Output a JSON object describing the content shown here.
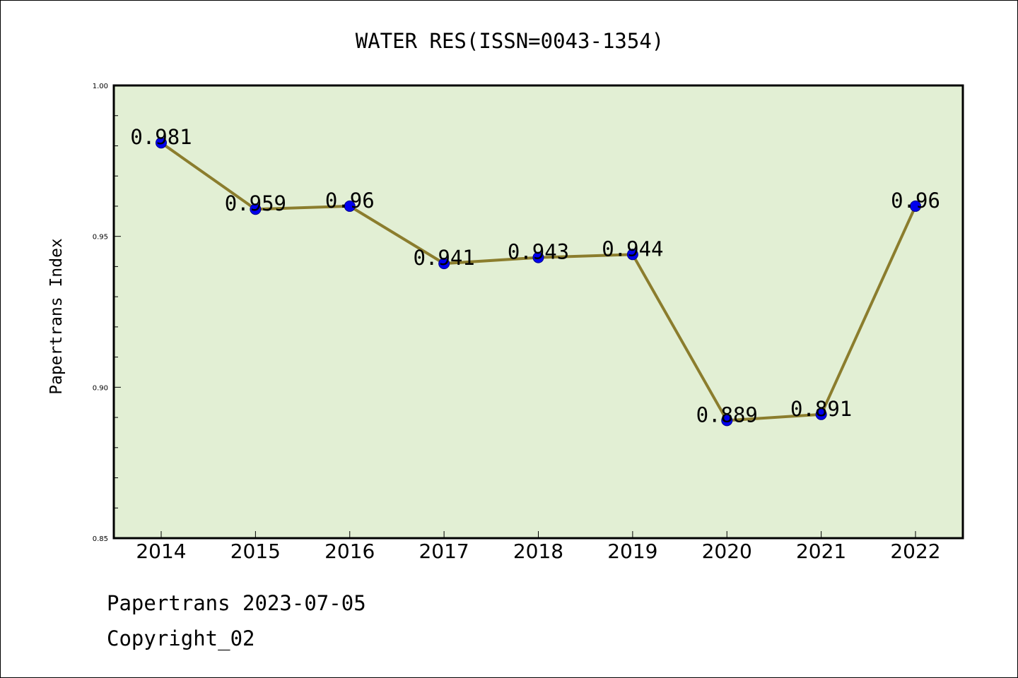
{
  "chart_data": {
    "type": "line",
    "title": "WATER RES(ISSN=0043-1354)",
    "xlabel": "",
    "ylabel": "Papertrans Index",
    "categories": [
      "2014",
      "2015",
      "2016",
      "2017",
      "2018",
      "2019",
      "2020",
      "2021",
      "2022"
    ],
    "values": [
      0.981,
      0.959,
      0.96,
      0.941,
      0.943,
      0.944,
      0.889,
      0.891,
      0.96
    ],
    "data_labels": [
      "0.981",
      "0.959",
      "0.96",
      "0.941",
      "0.943",
      "0.944",
      "0.889",
      "0.891",
      "0.96"
    ],
    "ylim": [
      0.85,
      1.0
    ],
    "yticks": [
      "0.85",
      "0.90",
      "0.95",
      "1.00"
    ],
    "grid": false,
    "colors": {
      "plot_background": "#e2efd4",
      "line": "#8b7d2d",
      "marker": "#0000ee",
      "marker_edge": "#00008b"
    }
  },
  "footer": {
    "line1": "Papertrans 2023-07-05",
    "line2": "Copyright_02"
  }
}
